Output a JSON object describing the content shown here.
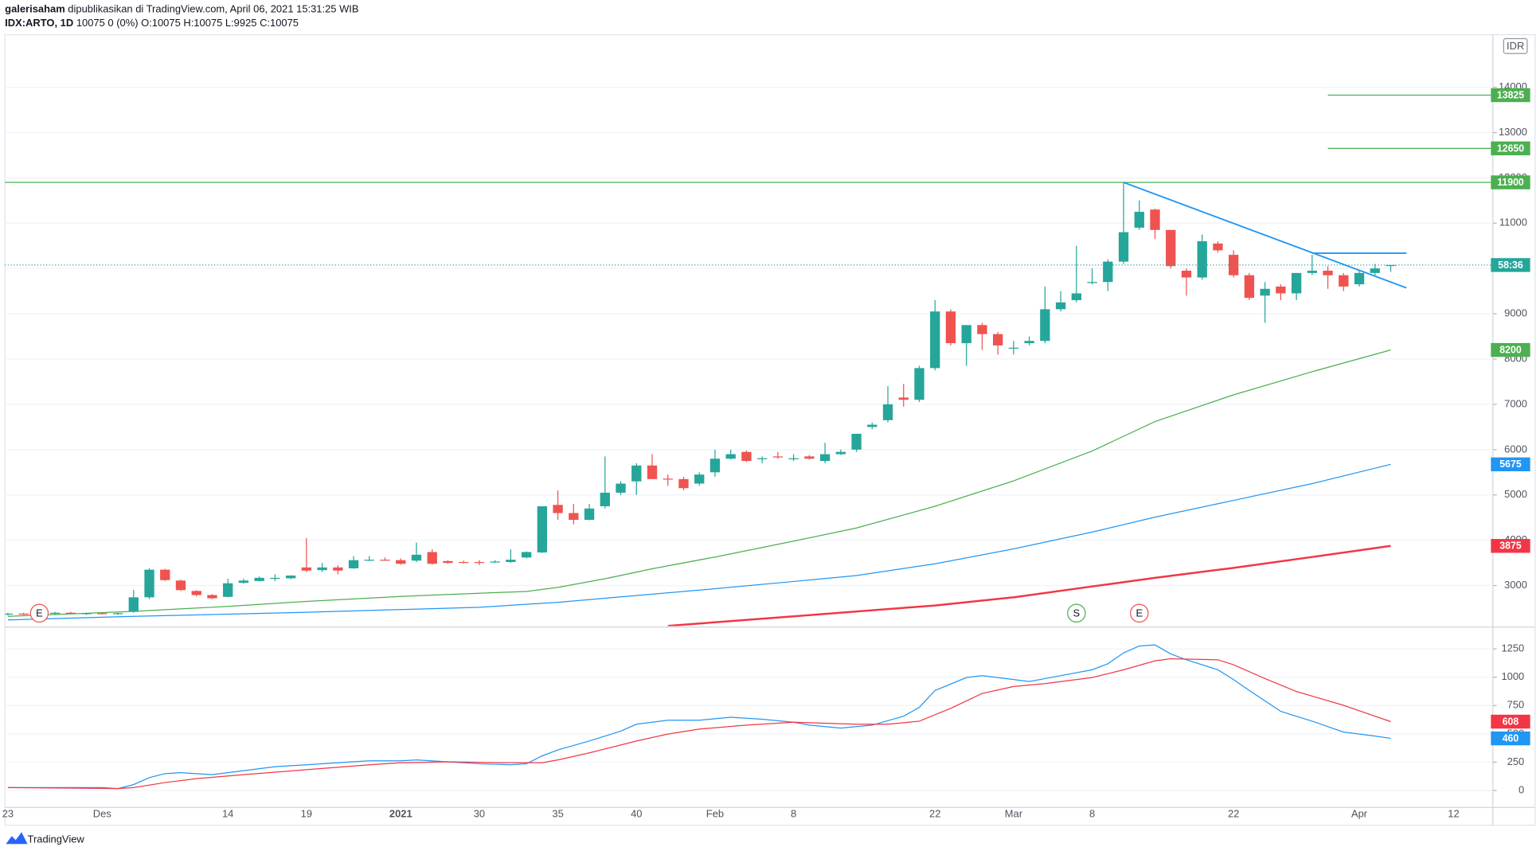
{
  "header": {
    "publisher": "galerisaham",
    "published": "dipublikasikan di TradingView.com, April 06, 2021 15:31:25 WIB",
    "symbol": "IDX:ARTO, 1D",
    "quote": "10075 0 (0%) O:10075 H:10075 L:9925 C:10075"
  },
  "footer": {
    "brand": "TradingView"
  },
  "chart_data": [
    {
      "type": "candlestick",
      "currency": "IDR",
      "x": [
        0,
        1,
        2,
        3,
        4,
        5,
        6,
        7,
        8,
        9,
        10,
        11,
        12,
        13,
        14,
        15,
        16,
        17,
        18,
        19,
        20,
        21,
        22,
        23,
        24,
        25,
        26,
        27,
        28,
        29,
        30,
        31,
        32,
        33,
        34,
        35,
        36,
        37,
        38,
        39,
        40,
        41,
        42,
        43,
        44,
        45,
        46,
        47,
        48,
        49,
        50,
        51,
        52,
        53,
        54,
        55,
        56,
        57,
        58,
        59,
        60,
        61,
        62,
        63,
        64,
        65,
        66,
        67,
        68,
        69,
        70,
        71,
        72,
        73,
        74,
        75,
        76,
        77,
        78,
        79,
        80,
        81,
        82,
        83,
        84,
        85,
        86,
        87,
        88
      ],
      "open": [
        2370,
        2380,
        2370,
        2380,
        2400,
        2380,
        2390,
        2370,
        2420,
        2740,
        3350,
        3110,
        2880,
        2790,
        2750,
        3060,
        3100,
        3170,
        3160,
        3400,
        3340,
        3400,
        3380,
        3560,
        3570,
        3560,
        3550,
        3740,
        3540,
        3520,
        3520,
        3520,
        3520,
        3620,
        3730,
        4780,
        4600,
        4450,
        4750,
        5050,
        5300,
        5650,
        5360,
        5350,
        5250,
        5500,
        5800,
        5950,
        5800,
        5850,
        5800,
        5850,
        5750,
        5900,
        6000,
        6500,
        6650,
        7150,
        7100,
        7800,
        9050,
        8350,
        8750,
        8550,
        8250,
        8350,
        8400,
        9100,
        9300,
        9700,
        9700,
        10150,
        10900,
        11300,
        10850,
        9950,
        9800,
        10550,
        10300,
        9850,
        9400,
        9600,
        9450,
        9900,
        9950,
        9850,
        9650,
        9900,
        10075
      ],
      "high": [
        2400,
        2400,
        2390,
        2420,
        2420,
        2400,
        2410,
        2400,
        2900,
        3380,
        3370,
        3130,
        2900,
        2810,
        3150,
        3150,
        3200,
        3250,
        3230,
        4050,
        3500,
        3450,
        3650,
        3650,
        3620,
        3600,
        3950,
        3800,
        3560,
        3550,
        3560,
        3560,
        3800,
        3750,
        4750,
        5100,
        4800,
        4800,
        5850,
        5300,
        5700,
        5900,
        5450,
        5400,
        5500,
        6000,
        6000,
        5980,
        5850,
        5950,
        5900,
        5880,
        6150,
        6000,
        6350,
        6600,
        7400,
        7450,
        7850,
        9300,
        9100,
        8750,
        8800,
        8600,
        8400,
        8500,
        9600,
        9500,
        10500,
        10000,
        10200,
        11900,
        11500,
        11320,
        10850,
        10000,
        10750,
        10600,
        10400,
        9900,
        9700,
        9650,
        9900,
        10300,
        10050,
        9900,
        9950,
        10100,
        10075
      ],
      "low": [
        2340,
        2350,
        2350,
        2360,
        2370,
        2350,
        2360,
        2350,
        2400,
        2700,
        3100,
        2880,
        2760,
        2700,
        2740,
        3040,
        3090,
        3100,
        3140,
        3300,
        3300,
        3250,
        3370,
        3540,
        3550,
        3460,
        3520,
        3460,
        3480,
        3490,
        3450,
        3500,
        3500,
        3600,
        3720,
        4450,
        4350,
        4440,
        4700,
        5000,
        5000,
        5350,
        5200,
        5100,
        5200,
        5400,
        5780,
        5730,
        5700,
        5800,
        5750,
        5780,
        5700,
        5880,
        5950,
        6450,
        6600,
        6950,
        7050,
        7750,
        8300,
        7850,
        8200,
        8100,
        8100,
        8300,
        8350,
        9050,
        9250,
        9650,
        9500,
        10100,
        10850,
        10650,
        10000,
        9400,
        9750,
        10350,
        9800,
        9300,
        8800,
        9300,
        9300,
        9850,
        9550,
        9500,
        9600,
        9850,
        9925
      ],
      "close": [
        2380,
        2370,
        2380,
        2400,
        2380,
        2390,
        2370,
        2390,
        2740,
        3350,
        3120,
        2900,
        2790,
        2720,
        3050,
        3110,
        3170,
        3170,
        3220,
        3330,
        3400,
        3330,
        3560,
        3570,
        3560,
        3480,
        3680,
        3480,
        3500,
        3510,
        3510,
        3530,
        3570,
        3740,
        4750,
        4600,
        4450,
        4700,
        5050,
        5250,
        5650,
        5350,
        5340,
        5150,
        5450,
        5800,
        5900,
        5750,
        5810,
        5840,
        5810,
        5800,
        5900,
        5950,
        6350,
        6550,
        7000,
        7100,
        7800,
        9050,
        8350,
        8750,
        8550,
        8300,
        8250,
        8400,
        9100,
        9250,
        9450,
        9700,
        10150,
        10800,
        11250,
        10850,
        10050,
        9800,
        10600,
        10400,
        9850,
        9350,
        9550,
        9450,
        9900,
        9950,
        9850,
        9600,
        9900,
        10000,
        10075
      ],
      "up_color": "#26a69a",
      "down_color": "#ef5350",
      "series": [
        {
          "color": "#4caf50",
          "line_width": 1,
          "x": [
            0,
            8,
            14,
            19,
            25,
            30,
            33,
            35,
            38,
            41,
            45,
            50,
            54,
            59,
            64,
            69,
            73,
            78,
            83,
            88
          ],
          "values": [
            2320,
            2430,
            2540,
            2650,
            2760,
            2830,
            2870,
            2960,
            3150,
            3370,
            3630,
            3980,
            4270,
            4750,
            5310,
            5970,
            6620,
            7210,
            7720,
            8200
          ]
        },
        {
          "color": "#2196f3",
          "line_width": 1,
          "x": [
            0,
            8,
            19,
            30,
            35,
            40,
            45,
            50,
            54,
            59,
            64,
            69,
            73,
            78,
            83,
            88
          ],
          "values": [
            2240,
            2320,
            2410,
            2520,
            2630,
            2780,
            2930,
            3090,
            3220,
            3480,
            3810,
            4180,
            4510,
            4880,
            5250,
            5675
          ]
        },
        {
          "color": "#f23645",
          "line_width": 2,
          "x": [
            42,
            50,
            59,
            64,
            69,
            73,
            78,
            83,
            88
          ],
          "values": [
            2110,
            2320,
            2560,
            2740,
            2980,
            3170,
            3390,
            3630,
            3875
          ]
        }
      ],
      "hlines": [
        {
          "value": 11900,
          "color": "#4caf50"
        },
        {
          "value": 12650,
          "color": "#4caf50",
          "from": 84
        },
        {
          "value": 13825,
          "color": "#4caf50",
          "from": 84
        }
      ],
      "trendlines": [
        {
          "color": "#2196f3",
          "x": [
            71,
            89
          ],
          "values": [
            11900,
            9570
          ]
        },
        {
          "color": "#2196f3",
          "x": [
            83,
            89
          ],
          "values": [
            10336,
            10336
          ]
        }
      ],
      "last_price": 10075,
      "countdown": "58:36",
      "events": [
        {
          "x": 2,
          "label": "E",
          "color": "#ef5350"
        },
        {
          "x": 68,
          "label": "S",
          "color": "#4caf50"
        },
        {
          "x": 72,
          "label": "E",
          "color": "#ef5350"
        }
      ],
      "xlim": [
        -0.19,
        94.5
      ],
      "ylim": [
        2105,
        15160
      ],
      "yticks": [
        3000,
        4000,
        5000,
        6000,
        7000,
        8000,
        9000,
        10000,
        11000,
        12000,
        13000,
        14000
      ],
      "grid": true
    },
    {
      "type": "line",
      "series": [
        {
          "color": "#2196f3",
          "x": [
            0,
            6,
            7,
            8,
            9,
            10,
            11,
            13,
            15,
            17,
            19,
            21,
            23,
            25,
            26,
            28,
            30,
            32,
            33,
            34,
            35,
            37,
            39,
            40,
            42,
            44,
            46,
            48,
            50,
            51,
            53,
            55,
            57,
            58,
            59,
            61,
            62,
            65,
            66,
            69,
            70,
            71,
            72,
            73,
            74,
            75,
            77,
            78,
            79,
            81,
            83,
            85,
            87,
            88
          ],
          "values": [
            26,
            26,
            17,
            52,
            114,
            149,
            157,
            140,
            175,
            210,
            227,
            245,
            262,
            262,
            270,
            253,
            236,
            227,
            236,
            306,
            358,
            437,
            524,
            585,
            620,
            620,
            647,
            629,
            603,
            577,
            551,
            577,
            656,
            734,
            883,
            997,
            1014,
            962,
            988,
            1066,
            1119,
            1215,
            1276,
            1285,
            1206,
            1154,
            1066,
            979,
            883,
            699,
            612,
            516,
            481,
            460
          ]
        },
        {
          "color": "#f23645",
          "x": [
            0,
            7,
            8,
            10,
            12,
            15,
            19,
            23,
            25,
            28,
            32,
            34,
            35,
            37,
            40,
            42,
            44,
            47,
            50,
            54,
            56,
            58,
            60,
            62,
            64,
            66,
            69,
            71,
            73,
            74,
            77,
            78,
            80,
            82,
            85,
            88
          ],
          "values": [
            26,
            17,
            26,
            70,
            105,
            140,
            184,
            227,
            245,
            253,
            245,
            245,
            270,
            332,
            437,
            498,
            542,
            577,
            603,
            585,
            585,
            612,
            725,
            857,
            918,
            944,
            997,
            1066,
            1145,
            1163,
            1154,
            1110,
            988,
            874,
            752,
            608
          ]
        }
      ],
      "xlim": [
        -0.19,
        94.5
      ],
      "ylim": [
        -149,
        1434
      ],
      "yticks": [
        0,
        250,
        500,
        750,
        1000,
        1250
      ],
      "xticks": [
        {
          "value": 0,
          "label": "23"
        },
        {
          "value": 6,
          "label": "Des"
        },
        14,
        19,
        {
          "value": 25,
          "label": "2021"
        },
        30,
        35,
        40,
        {
          "value": 45,
          "label": "Feb"
        },
        {
          "value": 50,
          "label": "8"
        },
        {
          "value": 59,
          "label": "22"
        },
        {
          "value": 64,
          "label": "Mar"
        },
        {
          "value": 69,
          "label": "8"
        },
        {
          "value": 78,
          "label": "22"
        },
        {
          "value": 86,
          "label": "Apr"
        },
        {
          "value": 92,
          "label": "12"
        }
      ],
      "grid": true
    }
  ]
}
